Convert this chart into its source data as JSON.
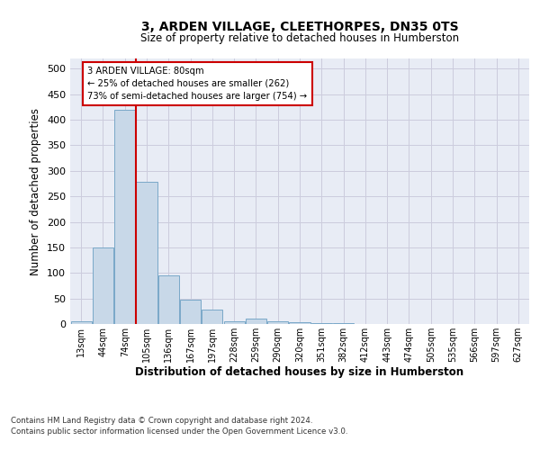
{
  "title1": "3, ARDEN VILLAGE, CLEETHORPES, DN35 0TS",
  "title2": "Size of property relative to detached houses in Humberston",
  "xlabel": "Distribution of detached houses by size in Humberston",
  "ylabel": "Number of detached properties",
  "categories": [
    "13sqm",
    "44sqm",
    "74sqm",
    "105sqm",
    "136sqm",
    "167sqm",
    "197sqm",
    "228sqm",
    "259sqm",
    "290sqm",
    "320sqm",
    "351sqm",
    "382sqm",
    "412sqm",
    "443sqm",
    "474sqm",
    "505sqm",
    "535sqm",
    "566sqm",
    "597sqm",
    "627sqm"
  ],
  "values": [
    5,
    150,
    420,
    278,
    95,
    48,
    28,
    6,
    10,
    5,
    3,
    2,
    1,
    0,
    0,
    0,
    0,
    0,
    0,
    0,
    0
  ],
  "bar_color": "#c8d8e8",
  "bar_edge_color": "#7aa8c8",
  "vline_color": "#cc0000",
  "vline_x": 2.5,
  "annotation_box_text": "3 ARDEN VILLAGE: 80sqm\n← 25% of detached houses are smaller (262)\n73% of semi-detached houses are larger (754) →",
  "annotation_box_color": "#cc0000",
  "annotation_box_facecolor": "white",
  "ylim": [
    0,
    520
  ],
  "yticks": [
    0,
    50,
    100,
    150,
    200,
    250,
    300,
    350,
    400,
    450,
    500
  ],
  "grid_color": "#ccccdd",
  "background_color": "#e8ecf5",
  "footer1": "Contains HM Land Registry data © Crown copyright and database right 2024.",
  "footer2": "Contains public sector information licensed under the Open Government Licence v3.0."
}
